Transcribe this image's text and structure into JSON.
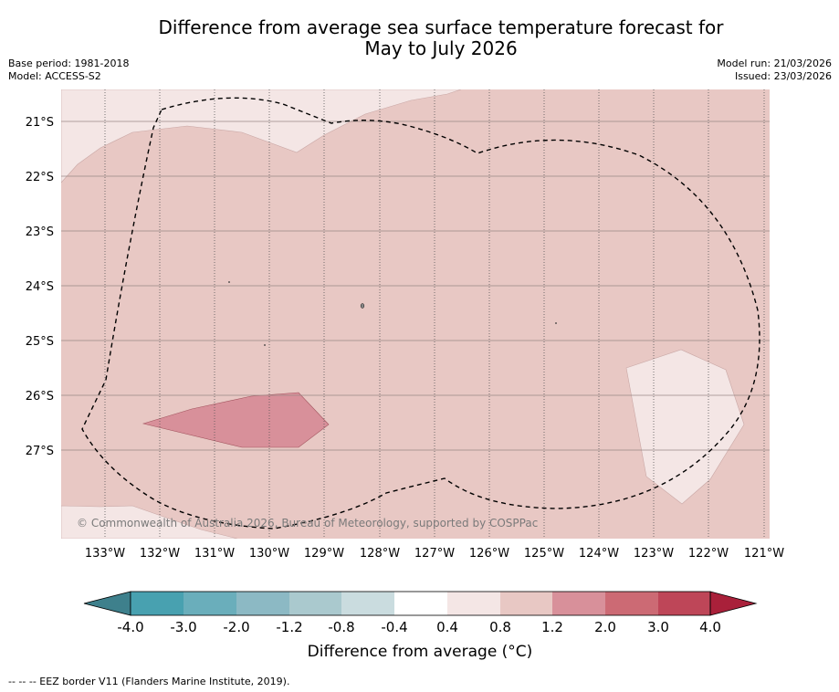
{
  "title": {
    "line1": "Difference from average sea surface temperature forecast for",
    "line2": "May to July 2026"
  },
  "meta": {
    "base_period": "Base period: 1981-2018",
    "model": "Model: ACCESS-S2",
    "model_run": "Model run: 21/03/2026",
    "issued": "Issued: 23/03/2026"
  },
  "map": {
    "lon_range": [
      -133.8,
      -120.9
    ],
    "lat_range": [
      -20.5,
      -28.7
    ],
    "lat_ticks": [
      "21°S",
      "22°S",
      "23°S",
      "24°S",
      "25°S",
      "26°S",
      "27°S"
    ],
    "lon_ticks": [
      "133°W",
      "132°W",
      "131°W",
      "130°W",
      "129°W",
      "128°W",
      "127°W",
      "126°W",
      "125°W",
      "124°W",
      "123°W",
      "122°W",
      "121°W"
    ],
    "copyright": "© Commonwealth of Australia 2026, Bureau of Meteorology, supported by COSPPac",
    "region_colors": {
      "background_anomaly": "#e8c8c4",
      "low_anomaly": "#f4e6e5",
      "high_anomaly": "#d8909a"
    }
  },
  "colorbar": {
    "ticks": [
      "-4.0",
      "-3.0",
      "-2.0",
      "-1.2",
      "-0.8",
      "-0.4",
      "0.4",
      "0.8",
      "1.2",
      "2.0",
      "3.0",
      "4.0"
    ],
    "colors": [
      "#3e808c",
      "#48a1b0",
      "#6aaebb",
      "#8cb9c4",
      "#aac9ce",
      "#cadcdf",
      "#ffffff",
      "#f4e6e5",
      "#e8c8c4",
      "#d8909a",
      "#cc6a74",
      "#be4658",
      "#a9203a"
    ],
    "label": "Difference from average (°C)"
  },
  "footnote": "--  --  -- EEZ border V11 (Flanders Marine Institute, 2019)."
}
